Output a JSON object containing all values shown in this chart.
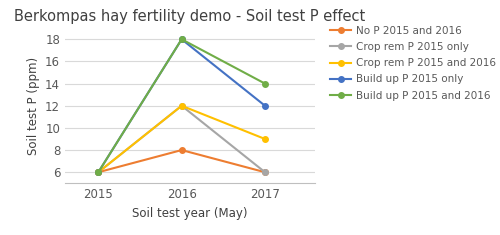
{
  "title": "Berkompas hay fertility demo - Soil test P effect",
  "xlabel": "Soil test year (May)",
  "ylabel": "Soil test P (ppm)",
  "x": [
    2015,
    2016,
    2017
  ],
  "series": [
    {
      "label": "No P 2015 and 2016",
      "color": "#ed7d31",
      "marker": "o",
      "y": [
        6,
        8,
        6
      ]
    },
    {
      "label": "Crop rem P 2015 only",
      "color": "#a6a6a6",
      "marker": "o",
      "y": [
        6,
        12,
        6
      ]
    },
    {
      "label": "Crop rem P 2015 and 2016",
      "color": "#ffc000",
      "marker": "o",
      "y": [
        6,
        12,
        9
      ]
    },
    {
      "label": "Build up P 2015 only",
      "color": "#4472c4",
      "marker": "o",
      "y": [
        6,
        18,
        12
      ]
    },
    {
      "label": "Build up P 2015 and 2016",
      "color": "#70ad47",
      "marker": "o",
      "y": [
        6,
        18,
        14
      ]
    }
  ],
  "ylim": [
    5,
    19
  ],
  "yticks": [
    6,
    8,
    10,
    12,
    14,
    16,
    18
  ],
  "xticks": [
    2015,
    2016,
    2017
  ],
  "xlim": [
    2014.6,
    2017.6
  ],
  "background_color": "#ffffff",
  "grid_color": "#d9d9d9",
  "title_fontsize": 10.5,
  "label_fontsize": 8.5,
  "tick_fontsize": 8.5,
  "legend_fontsize": 7.5
}
